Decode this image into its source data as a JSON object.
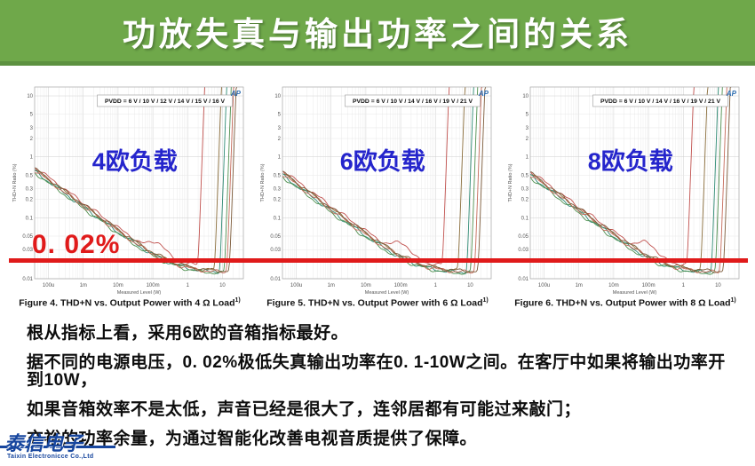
{
  "slide_title": "功放失真与输出功率之间的关系",
  "colors": {
    "banner_green": "#6fa84a",
    "banner_edge": "#5d9140",
    "threshold_red": "#e01a1a",
    "load_label_blue": "#2525cc",
    "logo_blue": "#17469e",
    "ap_watermark_blue": "#2b6cb0"
  },
  "threshold": {
    "label": "0. 02%",
    "value_percent": 0.02
  },
  "analysis": {
    "lines": [
      "根从指标上看，采用6欧的音箱指标最好。",
      "据不同的电源电压，0. 02%极低失真输出功率在0. 1-10W之间。在客厅中如果将输出功率开到10W，",
      "如果音箱效率不是太低，声音已经是很大了，连邻居都有可能过来敲门；",
      "充裕的功率余量，为通过智能化改善电视音质提供了保障。"
    ]
  },
  "logo": {
    "cn": "泰信电子",
    "en": "Taixin Electronicce Co.,Ltd"
  },
  "chart_data": [
    {
      "id": 0,
      "type": "line",
      "load_label": "4欧负载",
      "legend": "PVDD = 6 V / 10 V / 12 V / 14 V / 15 V / 16 V",
      "caption": "Figure 4. THD+N vs. Output Power with 4 Ω Load",
      "caption_sup": "1)",
      "xlabel": "Measured Level (W)",
      "ylabel": "THD+N Ratio (%)",
      "watermark": "AP",
      "x_range": [
        4e-05,
        40
      ],
      "y_range": [
        0.01,
        14
      ],
      "x_ticks": {
        "values": [
          0.0001,
          0.001,
          0.01,
          0.1,
          1,
          10
        ],
        "labels": [
          "100u",
          "1m",
          "10m",
          "100m",
          "1",
          "10"
        ]
      },
      "y_ticks": [
        10,
        5,
        3,
        2,
        1,
        0.5,
        0.3,
        0.2,
        0.1,
        0.05,
        0.03,
        0.02,
        0.01
      ],
      "series": [
        {
          "name": "6 V",
          "color": "#c0504d",
          "start": 0.68,
          "floor": 0.015,
          "clip_w": 2.0,
          "bump": 0.5,
          "bump_at": -0.85
        },
        {
          "name": "10 V",
          "color": "#8a6d3b",
          "start": 0.62,
          "floor": 0.013,
          "clip_w": 6.0,
          "bump": 0,
          "bump_at": 0
        },
        {
          "name": "12 V",
          "color": "#2e8b74",
          "start": 0.58,
          "floor": 0.0125,
          "clip_w": 8.5,
          "bump": 0,
          "bump_at": 0
        },
        {
          "name": "14 V",
          "color": "#4e8f4e",
          "start": 0.55,
          "floor": 0.012,
          "clip_w": 11.5,
          "bump": 0,
          "bump_at": 0
        },
        {
          "name": "15 V",
          "color": "#c56a5a",
          "start": 0.6,
          "floor": 0.0125,
          "clip_w": 13.5,
          "bump": 0,
          "bump_at": 0
        },
        {
          "name": "16 V",
          "color": "#7c5b3a",
          "start": 0.64,
          "floor": 0.013,
          "clip_w": 16.0,
          "bump": 0,
          "bump_at": 0
        }
      ]
    },
    {
      "id": 1,
      "type": "line",
      "load_label": "6欧负载",
      "legend": "PVDD = 6 V / 10 V / 14 V / 16 V / 19 V / 21 V",
      "caption": "Figure 5. THD+N vs. Output Power with 6 Ω Load",
      "caption_sup": "1)",
      "xlabel": "Measured Level (W)",
      "ylabel": "THD+N Ratio (%)",
      "watermark": "AP",
      "x_range": [
        4e-05,
        40
      ],
      "y_range": [
        0.01,
        14
      ],
      "x_ticks": {
        "values": [
          0.0001,
          0.001,
          0.01,
          0.1,
          1,
          10
        ],
        "labels": [
          "100u",
          "1m",
          "10m",
          "100m",
          "1",
          "10"
        ]
      },
      "y_ticks": [
        10,
        5,
        3,
        2,
        1,
        0.5,
        0.3,
        0.2,
        0.1,
        0.05,
        0.03,
        0.02,
        0.01
      ],
      "series": [
        {
          "name": "6 V",
          "color": "#c0504d",
          "start": 0.6,
          "floor": 0.015,
          "clip_w": 1.6,
          "bump": 0.5,
          "bump_at": -0.95
        },
        {
          "name": "10 V",
          "color": "#8a6d3b",
          "start": 0.55,
          "floor": 0.013,
          "clip_w": 4.5,
          "bump": 0,
          "bump_at": 0
        },
        {
          "name": "14 V",
          "color": "#2e8b74",
          "start": 0.5,
          "floor": 0.0122,
          "clip_w": 8.0,
          "bump": 0,
          "bump_at": 0
        },
        {
          "name": "16 V",
          "color": "#4e8f4e",
          "start": 0.47,
          "floor": 0.012,
          "clip_w": 10.5,
          "bump": 0,
          "bump_at": 0
        },
        {
          "name": "19 V",
          "color": "#c56a5a",
          "start": 0.52,
          "floor": 0.0125,
          "clip_w": 13.5,
          "bump": 0,
          "bump_at": 0
        },
        {
          "name": "21 V",
          "color": "#7c5b3a",
          "start": 0.56,
          "floor": 0.013,
          "clip_w": 17.0,
          "bump": 0,
          "bump_at": 0
        }
      ]
    },
    {
      "id": 2,
      "type": "line",
      "load_label": "8欧负载",
      "legend": "PVDD = 6 V / 10 V / 14 V / 16 V / 19 V / 21 V",
      "caption": "Figure 6. THD+N vs. Output Power with 8 Ω Load",
      "caption_sup": "1)",
      "xlabel": "Measured Level (W)",
      "ylabel": "THD+N Ratio (%)",
      "watermark": "AP",
      "x_range": [
        4e-05,
        40
      ],
      "y_range": [
        0.01,
        14
      ],
      "x_ticks": {
        "values": [
          0.0001,
          0.001,
          0.01,
          0.1,
          1,
          10
        ],
        "labels": [
          "100u",
          "1m",
          "10m",
          "100m",
          "1",
          "10"
        ]
      },
      "y_ticks": [
        10,
        5,
        3,
        2,
        1,
        0.5,
        0.3,
        0.2,
        0.1,
        0.05,
        0.03,
        0.02,
        0.01
      ],
      "series": [
        {
          "name": "6 V",
          "color": "#c0504d",
          "start": 0.58,
          "floor": 0.015,
          "clip_w": 1.3,
          "bump": 0.5,
          "bump_at": -1.0
        },
        {
          "name": "10 V",
          "color": "#8a6d3b",
          "start": 0.53,
          "floor": 0.013,
          "clip_w": 3.2,
          "bump": 0,
          "bump_at": 0
        },
        {
          "name": "14 V",
          "color": "#2e8b74",
          "start": 0.49,
          "floor": 0.0122,
          "clip_w": 6.5,
          "bump": 0,
          "bump_at": 0
        },
        {
          "name": "16 V",
          "color": "#4e8f4e",
          "start": 0.46,
          "floor": 0.012,
          "clip_w": 8.5,
          "bump": 0,
          "bump_at": 0
        },
        {
          "name": "19 V",
          "color": "#c56a5a",
          "start": 0.51,
          "floor": 0.0125,
          "clip_w": 11.5,
          "bump": 0,
          "bump_at": 0
        },
        {
          "name": "21 V",
          "color": "#7c5b3a",
          "start": 0.55,
          "floor": 0.013,
          "clip_w": 14.5,
          "bump": 0,
          "bump_at": 0
        }
      ]
    }
  ]
}
